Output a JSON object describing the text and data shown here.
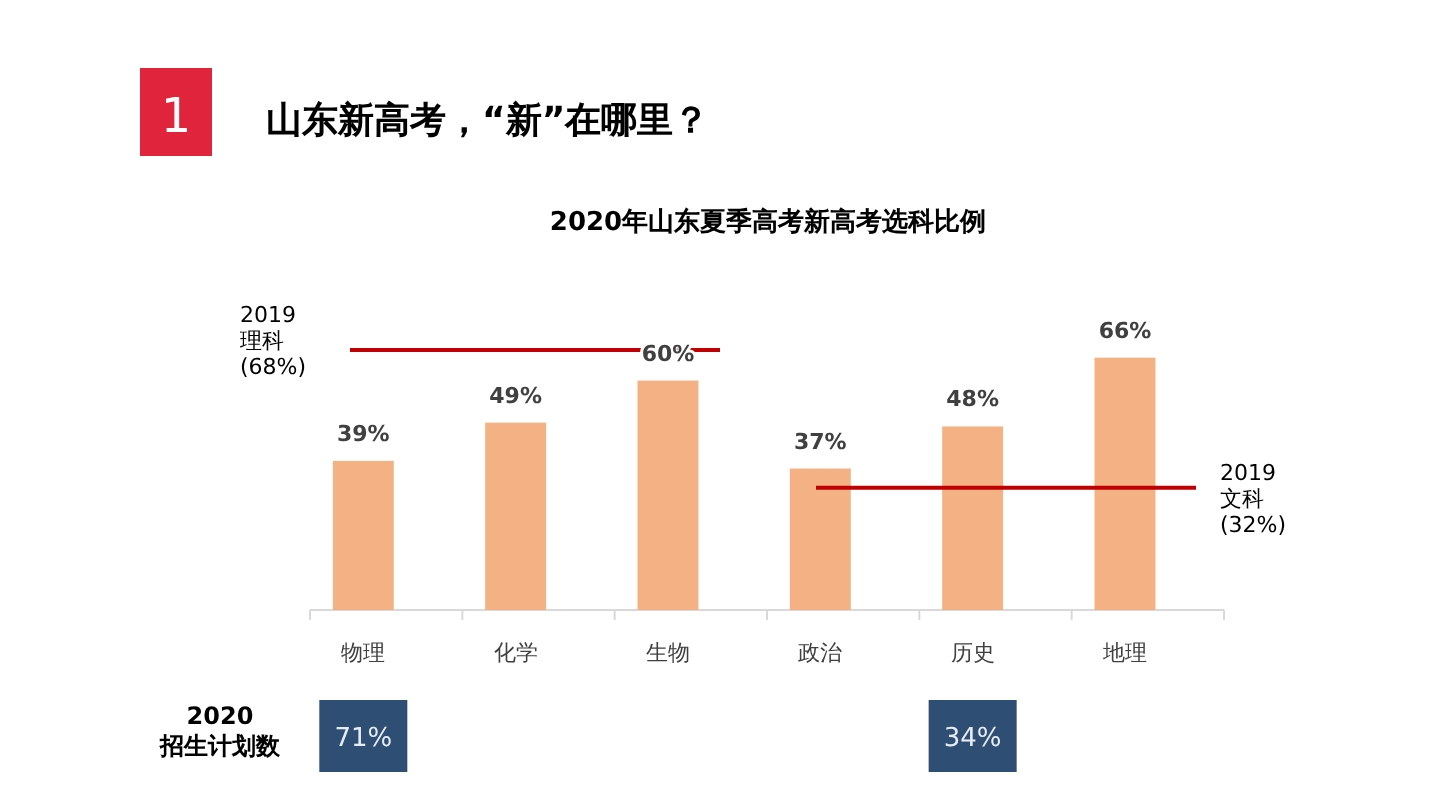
{
  "chart_data": {
    "type": "bar",
    "title": "山东新高考，“新”在哪里？",
    "subtitle": "2020年山东夏季高考新高考选科比例",
    "categories": [
      "物理",
      "化学",
      "生物",
      "政治",
      "历史",
      "地理"
    ],
    "values": [
      39,
      49,
      60,
      37,
      48,
      66
    ],
    "value_labels": [
      "39%",
      "49%",
      "60%",
      "37%",
      "48%",
      "66%"
    ],
    "color": "#f4b183",
    "ref_lines": [
      {
        "axis": "y",
        "value": 68,
        "label": "2019\n理科\n(68%)",
        "color": "#c00000"
      },
      {
        "axis": "y",
        "value": 32,
        "label": "2019\n文科\n(32%)",
        "color": "#c00000"
      }
    ],
    "annotations": [
      "1",
      "2020\n招生计划数",
      "71%",
      "34%"
    ]
  }
}
